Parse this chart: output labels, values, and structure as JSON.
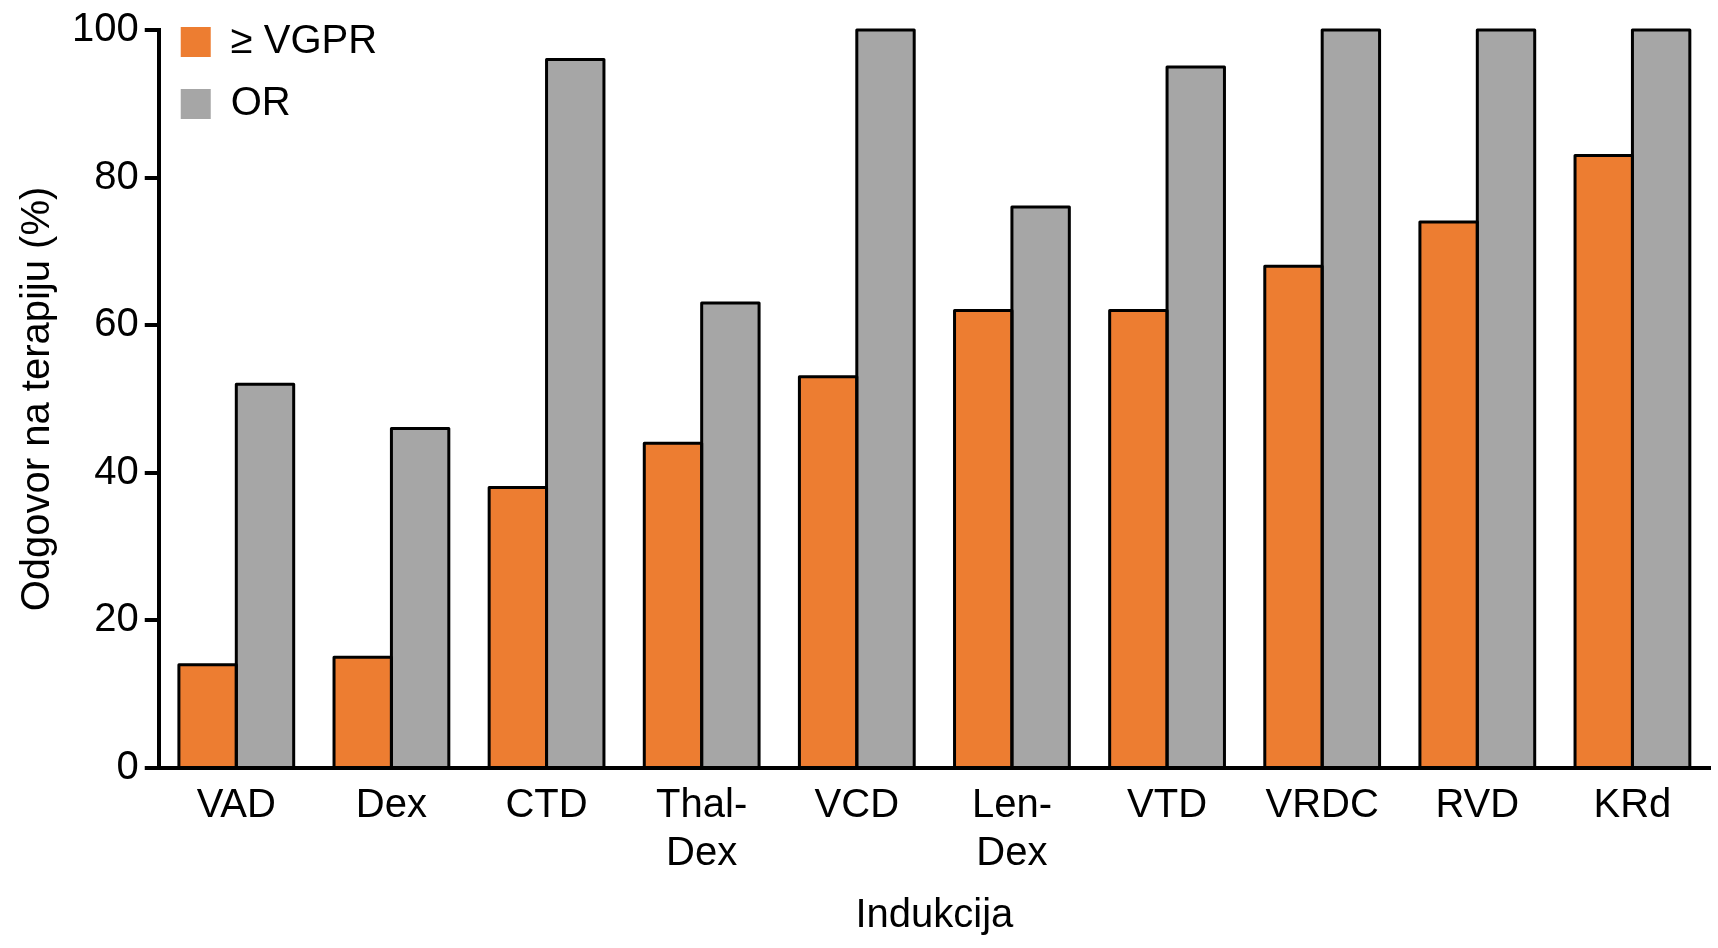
{
  "chart_data": {
    "type": "bar",
    "xlabel": "Indukcija",
    "ylabel": "Odgovor na terapiju (%)",
    "categories": [
      "VAD",
      "Dex",
      "CTD",
      "Thal-Dex",
      "VCD",
      "Len-Dex",
      "VTD",
      "VRDC",
      "RVD",
      "KRd"
    ],
    "series": [
      {
        "name": "≥ VGPR",
        "color": "#ed7d31",
        "values": [
          14,
          15,
          38,
          44,
          53,
          62,
          62,
          68,
          74,
          83
        ]
      },
      {
        "name": "OR",
        "color": "#a6a6a6",
        "values": [
          52,
          46,
          96,
          63,
          100,
          76,
          95,
          100,
          100,
          100
        ]
      }
    ],
    "ylim": [
      0,
      100
    ],
    "yticks": [
      0,
      20,
      40,
      60,
      80,
      100
    ],
    "grid": false,
    "legend": "top left"
  }
}
